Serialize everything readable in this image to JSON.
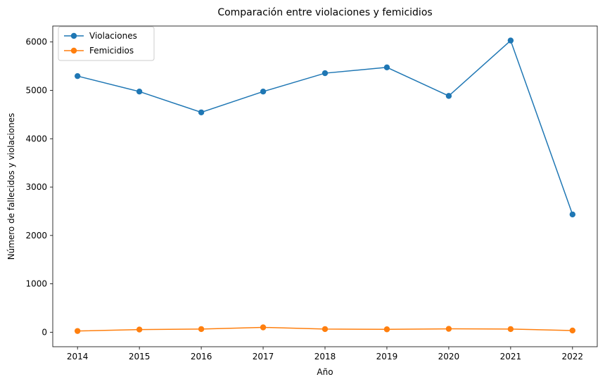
{
  "chart_data": {
    "type": "line",
    "title": "Comparación entre violaciones y femicidios",
    "xlabel": "Año",
    "ylabel": "Número de fallecidos y violaciones",
    "x": [
      2014,
      2015,
      2016,
      2017,
      2018,
      2019,
      2020,
      2021,
      2022
    ],
    "xlim": [
      2013.6,
      2022.4
    ],
    "ylim": [
      -300,
      6330
    ],
    "yticks": [
      0,
      1000,
      2000,
      3000,
      4000,
      5000,
      6000
    ],
    "grid": false,
    "legend": "upper-left",
    "series": [
      {
        "name": "Violaciones",
        "color": "#1f77b4",
        "values": [
          5295,
          4975,
          4545,
          4975,
          5355,
          5475,
          4885,
          6030,
          2435
        ]
      },
      {
        "name": "Femicidios",
        "color": "#ff7f0e",
        "values": [
          25,
          55,
          65,
          100,
          65,
          60,
          70,
          65,
          35
        ]
      }
    ]
  }
}
